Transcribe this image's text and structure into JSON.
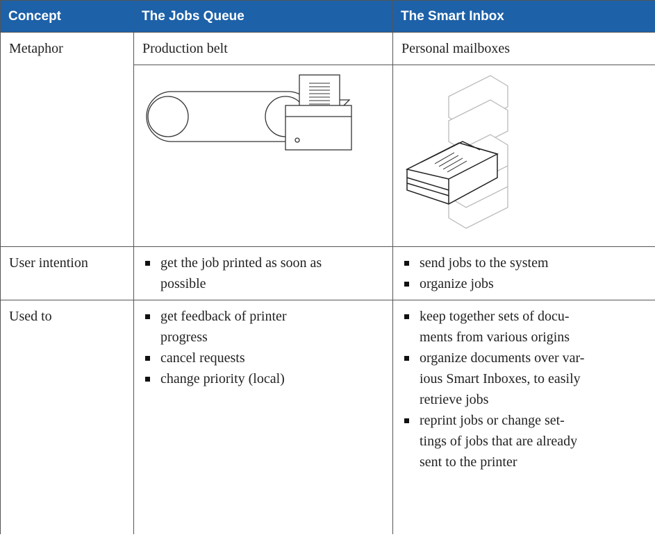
{
  "table": {
    "headers": [
      "Concept",
      "The Jobs Queue",
      "The Smart Inbox"
    ],
    "rows": [
      {
        "label": "Metaphor",
        "cells": [
          {
            "text": "Production belt"
          },
          {
            "text": "Personal mailboxes"
          }
        ]
      },
      {
        "label": "User intention",
        "cells": [
          {
            "items": [
              {
                "lines": [
                  "get the job printed as soon as",
                  "possible"
                ]
              }
            ]
          },
          {
            "items": [
              {
                "lines": [
                  "send jobs to the system"
                ]
              },
              {
                "lines": [
                  "organize jobs"
                ]
              }
            ]
          }
        ]
      },
      {
        "label": "Used to",
        "cells": [
          {
            "items": [
              {
                "lines": [
                  "get feedback of printer",
                  "progress"
                ]
              },
              {
                "lines": [
                  "cancel requests"
                ]
              },
              {
                "lines": [
                  "change priority (local)"
                ]
              }
            ]
          },
          {
            "items": [
              {
                "lines": [
                  "keep together sets of docu-",
                  "ments from various origins"
                ]
              },
              {
                "lines": [
                  "organize documents over var-",
                  "ious Smart Inboxes, to easily",
                  "retrieve jobs"
                ]
              },
              {
                "lines": [
                  "reprint jobs or change set-",
                  "tings of jobs that are already",
                  "sent to the printer"
                ]
              }
            ]
          }
        ]
      }
    ]
  }
}
